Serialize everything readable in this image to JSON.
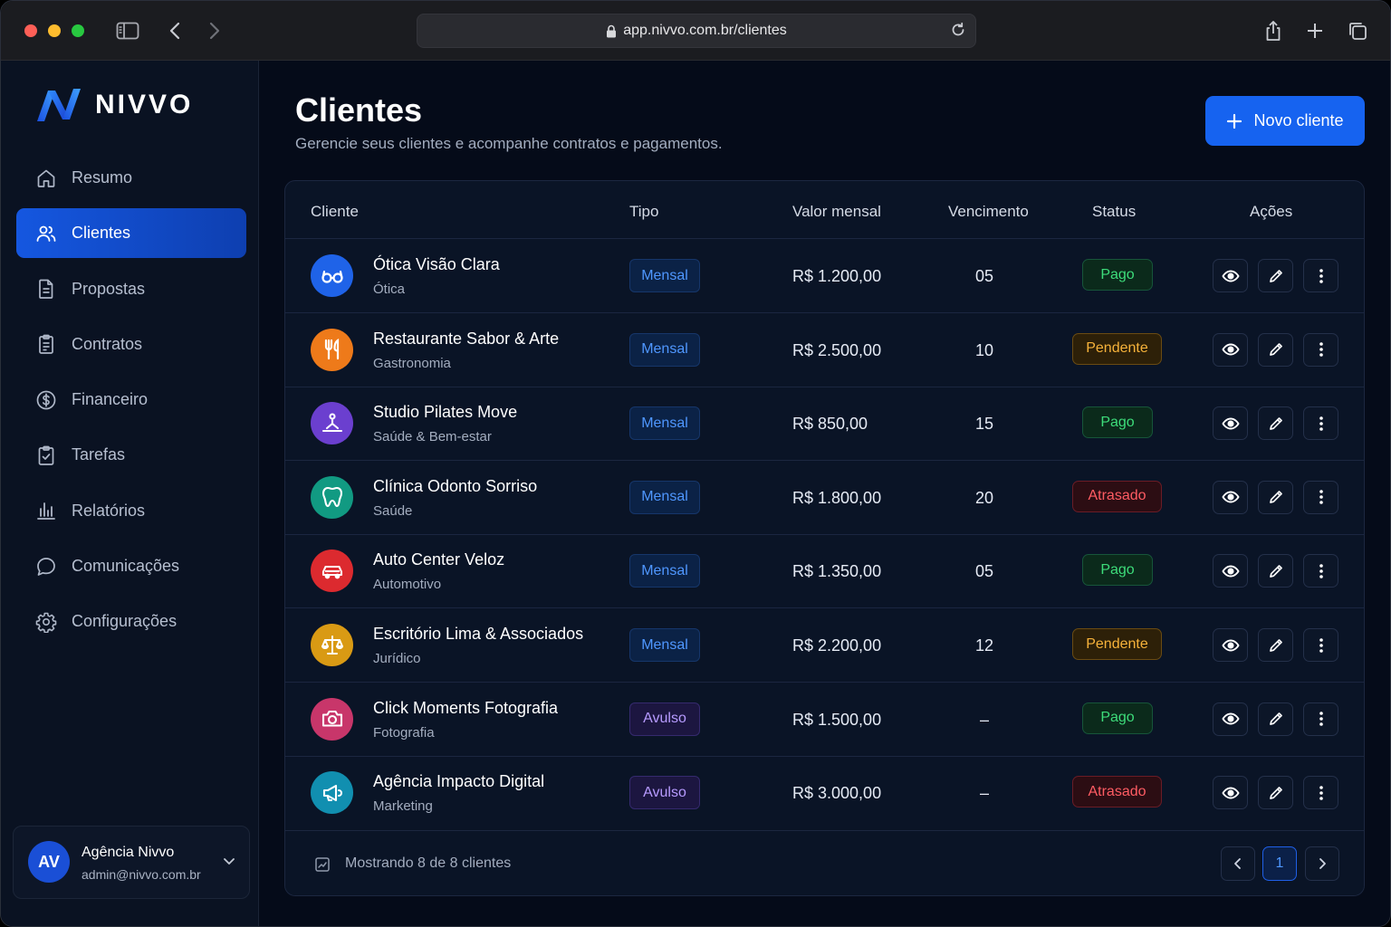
{
  "browser": {
    "url": "app.nivvo.com.br/clientes"
  },
  "brand": {
    "name": "NIVVO"
  },
  "sidebar": {
    "items": [
      {
        "label": "Resumo",
        "icon": "home-icon"
      },
      {
        "label": "Clientes",
        "icon": "users-icon",
        "active": true
      },
      {
        "label": "Propostas",
        "icon": "document-icon"
      },
      {
        "label": "Contratos",
        "icon": "clipboard-icon"
      },
      {
        "label": "Financeiro",
        "icon": "dollar-icon"
      },
      {
        "label": "Tarefas",
        "icon": "checklist-icon"
      },
      {
        "label": "Relatórios",
        "icon": "bar-chart-icon"
      },
      {
        "label": "Comunicações",
        "icon": "chat-icon"
      },
      {
        "label": "Configurações",
        "icon": "gear-icon"
      }
    ],
    "user": {
      "initials": "AV",
      "name": "Agência Nivvo",
      "email": "admin@nivvo.com.br"
    }
  },
  "page": {
    "title": "Clientes",
    "subtitle": "Gerencie seus clientes e acompanhe contratos e pagamentos.",
    "new_button": "Novo cliente"
  },
  "table": {
    "headers": {
      "cliente": "Cliente",
      "tipo": "Tipo",
      "valor": "Valor mensal",
      "vencimento": "Vencimento",
      "status": "Status",
      "acoes": "Ações"
    },
    "rows": [
      {
        "name": "Ótica Visão Clara",
        "category": "Ótica",
        "tipo": "Mensal",
        "valor": "R$ 1.200,00",
        "vencimento": "05",
        "status": "Pago",
        "icon": "glasses-icon",
        "color": "#1f63e8"
      },
      {
        "name": "Restaurante Sabor & Arte",
        "category": "Gastronomia",
        "tipo": "Mensal",
        "valor": "R$ 2.500,00",
        "vencimento": "10",
        "status": "Pendente",
        "icon": "utensils-icon",
        "color": "#ee7a1a"
      },
      {
        "name": "Studio Pilates Move",
        "category": "Saúde & Bem-estar",
        "tipo": "Mensal",
        "valor": "R$ 850,00",
        "vencimento": "15",
        "status": "Pago",
        "icon": "pilates-icon",
        "color": "#6b3fcf"
      },
      {
        "name": "Clínica Odonto Sorriso",
        "category": "Saúde",
        "tipo": "Mensal",
        "valor": "R$ 1.800,00",
        "vencimento": "20",
        "status": "Atrasado",
        "icon": "tooth-icon",
        "color": "#119a82"
      },
      {
        "name": "Auto Center Veloz",
        "category": "Automotivo",
        "tipo": "Mensal",
        "valor": "R$ 1.350,00",
        "vencimento": "05",
        "status": "Pago",
        "icon": "car-icon",
        "color": "#dc2a2f"
      },
      {
        "name": "Escritório Lima & Associados",
        "category": "Jurídico",
        "tipo": "Mensal",
        "valor": "R$ 2.200,00",
        "vencimento": "12",
        "status": "Pendente",
        "icon": "scales-icon",
        "color": "#d99a14"
      },
      {
        "name": "Click Moments Fotografia",
        "category": "Fotografia",
        "tipo": "Avulso",
        "valor": "R$ 1.500,00",
        "vencimento": "–",
        "status": "Pago",
        "icon": "camera-icon",
        "color": "#c8366a"
      },
      {
        "name": "Agência Impacto Digital",
        "category": "Marketing",
        "tipo": "Avulso",
        "valor": "R$ 3.000,00",
        "vencimento": "–",
        "status": "Atrasado",
        "icon": "megaphone-icon",
        "color": "#118fb0"
      }
    ],
    "footer": {
      "summary": "Mostrando 8 de 8 clientes",
      "current_page": "1"
    }
  }
}
